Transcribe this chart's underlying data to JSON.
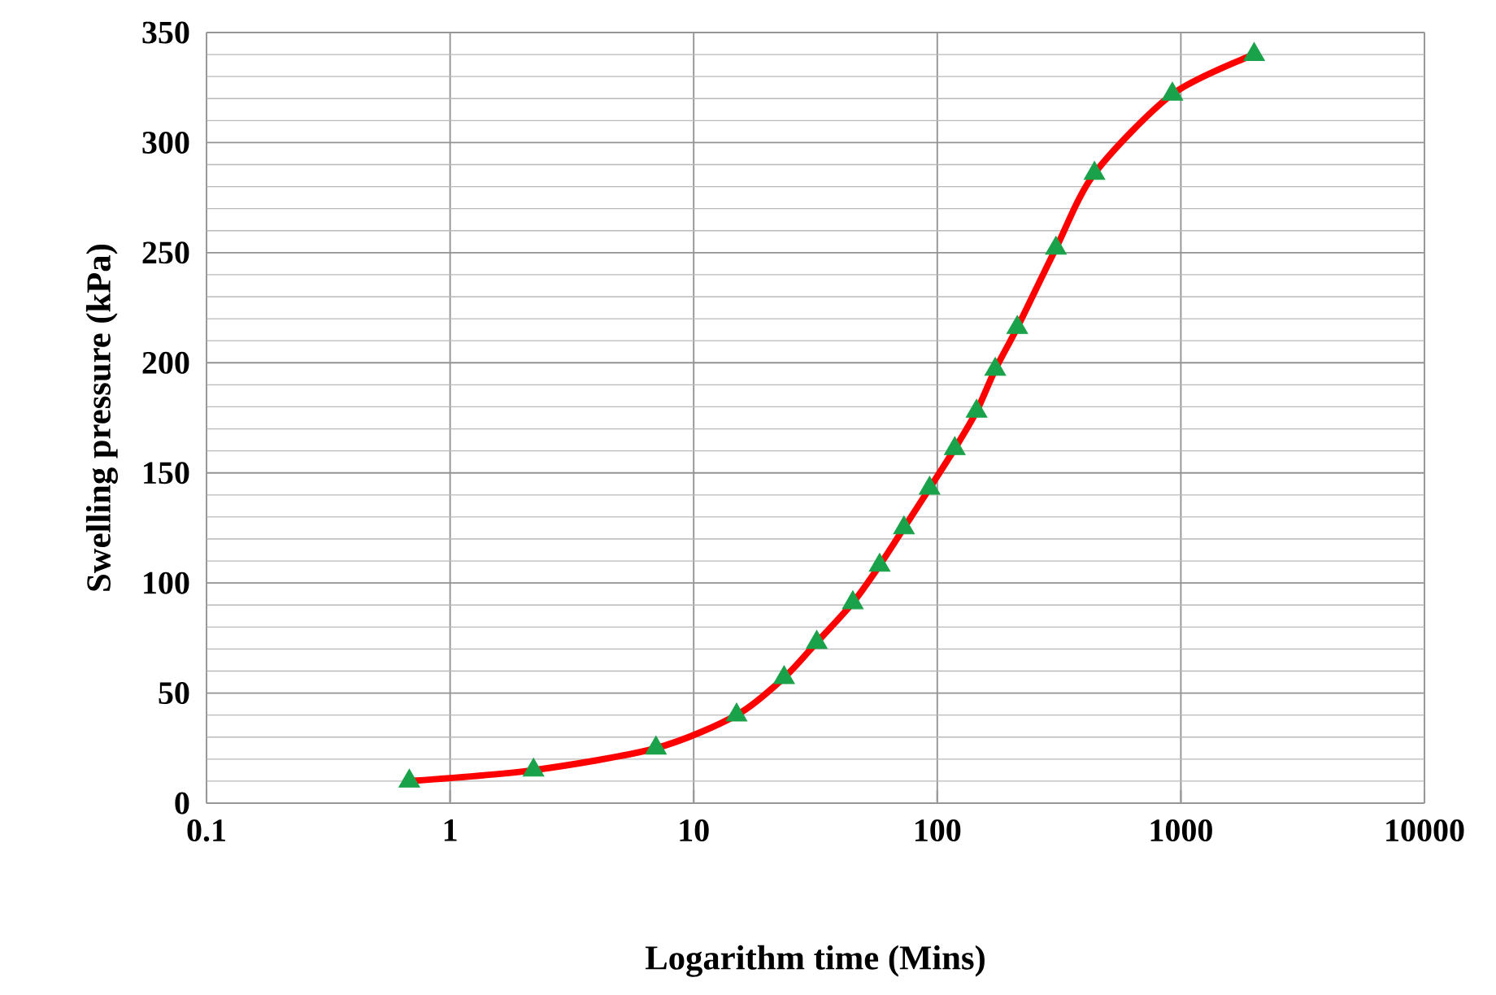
{
  "chart_data": {
    "type": "line",
    "xlabel": "Logarithm time (Mins)",
    "ylabel": "Swelling pressure (kPa)",
    "x": [
      0.68,
      2.2,
      7,
      15,
      23.5,
      32,
      45,
      58,
      73,
      93,
      118,
      145,
      173,
      213,
      307,
      442,
      923,
      2000
    ],
    "series": [
      {
        "color": "#ff0000",
        "values": [
          10,
          15,
          25,
          40,
          57,
          73,
          91,
          108,
          125,
          143,
          161,
          178,
          197,
          216,
          252,
          286,
          322,
          340
        ]
      }
    ],
    "xlim": [
      0.1,
      10000
    ],
    "xticks": [
      0.1,
      1,
      10,
      100,
      1000,
      10000
    ],
    "ylim": [
      0,
      350
    ],
    "yticks": [
      0,
      50,
      100,
      150,
      200,
      250,
      300,
      350
    ],
    "log": "x",
    "grid": true,
    "marker": "triangle",
    "line_style": "solid"
  }
}
